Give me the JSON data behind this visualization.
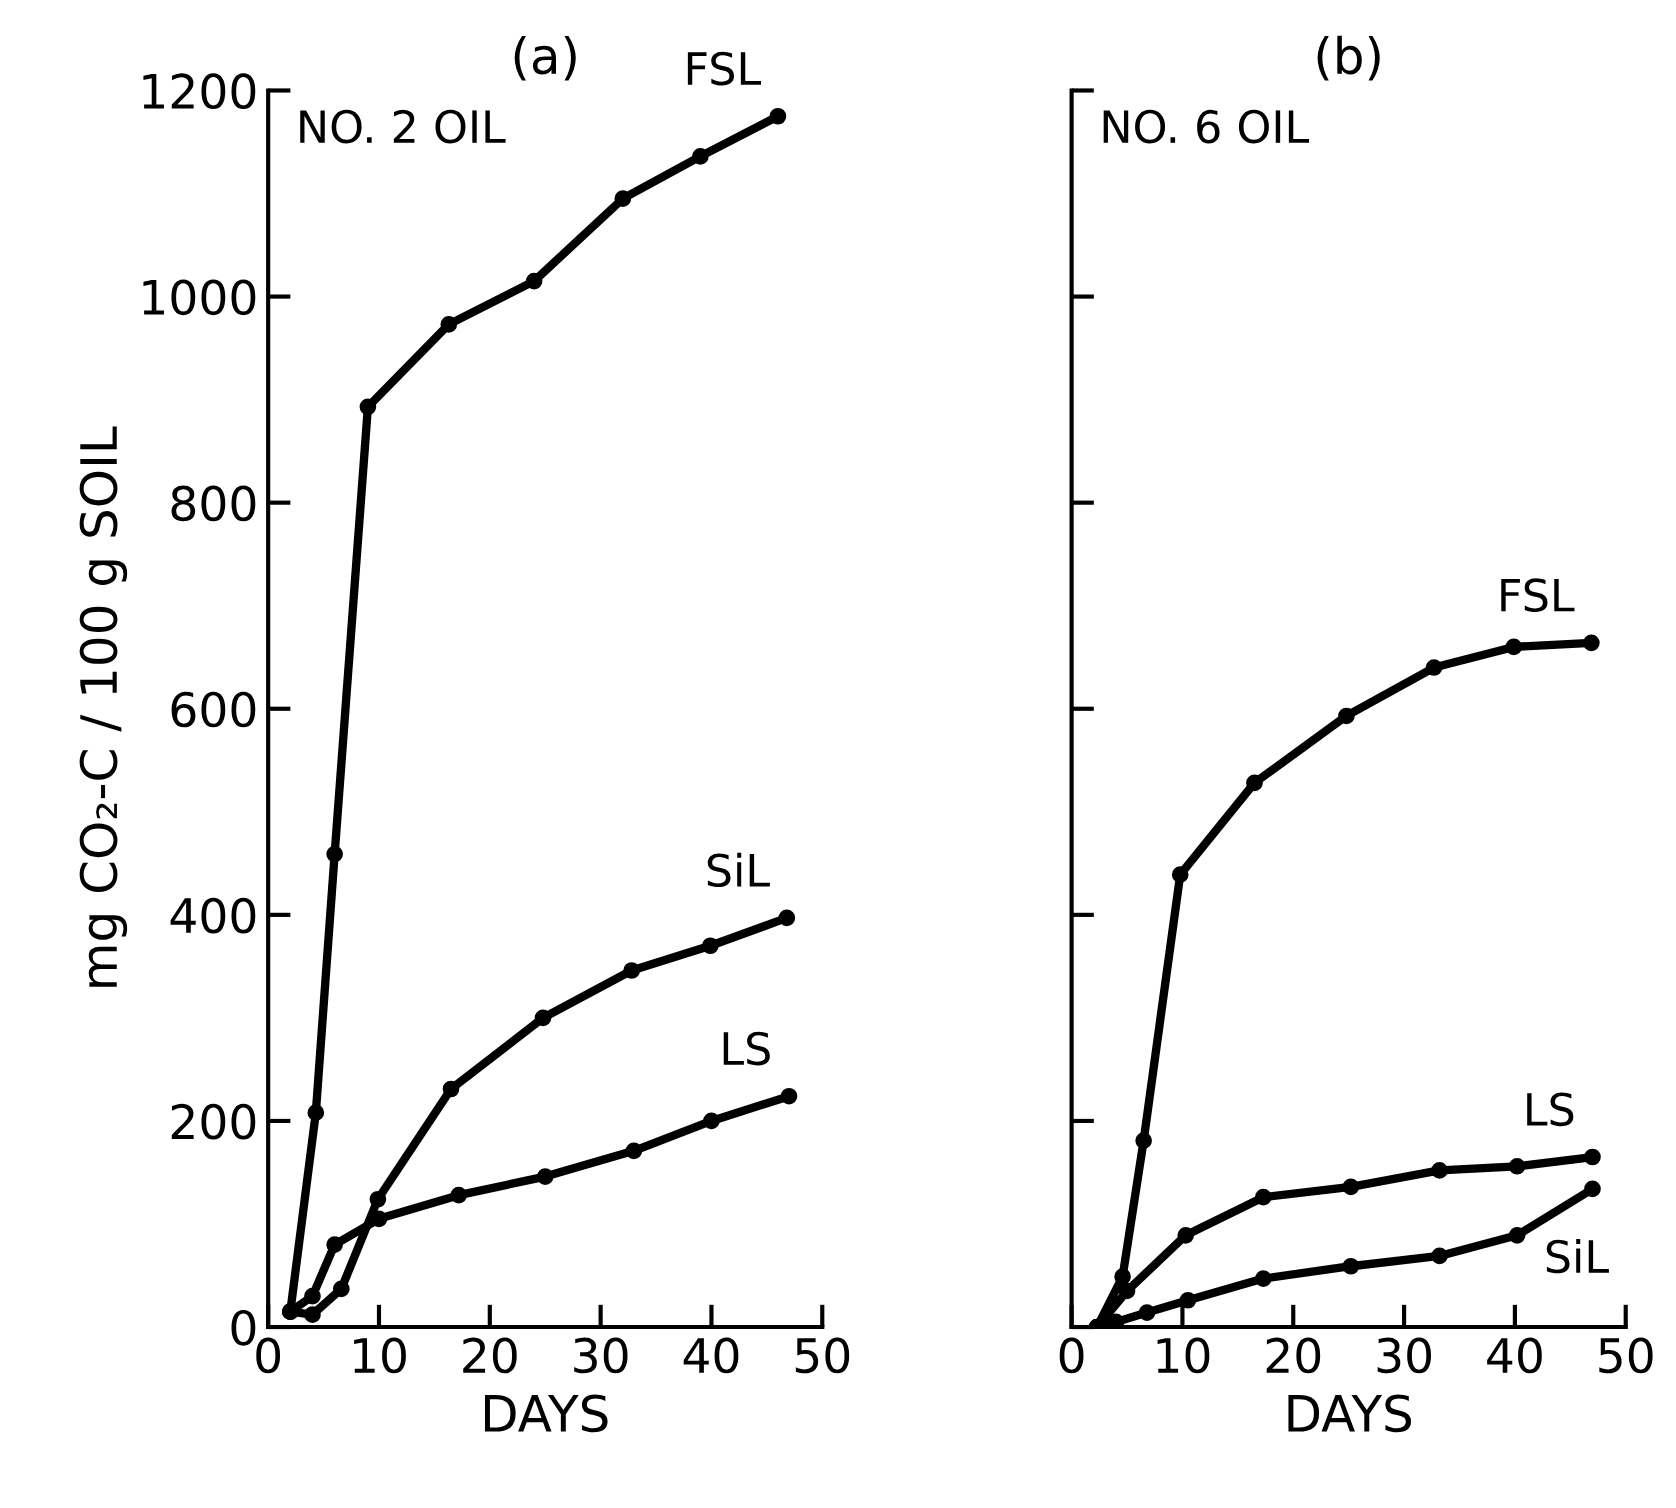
{
  "chart_data": [
    {
      "type": "line",
      "title": "(a)",
      "xlabel": "DAYS",
      "ylabel": "mg CO₂-C / 100 g SOIL",
      "xlim": [
        0,
        50
      ],
      "ylim": [
        0,
        1200
      ],
      "xticks": [
        0,
        10,
        20,
        30,
        40,
        50
      ],
      "yticks": [
        0,
        200,
        400,
        600,
        800,
        1000,
        1200
      ],
      "marker": "circle",
      "line_style": "solid",
      "annotations": [
        "NO. 2 OIL"
      ],
      "series": [
        {
          "name": "FSL",
          "color": "#000000",
          "x": [
            2,
            4.3,
            6,
            9,
            16.3,
            24,
            32,
            39,
            46
          ],
          "values": [
            15,
            208,
            459,
            893,
            973,
            1015,
            1095,
            1136,
            1175
          ]
        },
        {
          "name": "SiL",
          "color": "#000000",
          "x": [
            2,
            4,
            6.6,
            9.9,
            16.5,
            24.8,
            32.8,
            39.9,
            46.8
          ],
          "values": [
            15,
            12,
            37,
            124,
            231,
            300,
            346,
            370,
            397
          ]
        },
        {
          "name": "LS",
          "color": "#000000",
          "x": [
            2,
            4,
            6,
            10,
            17.2,
            25,
            33,
            40,
            47
          ],
          "values": [
            15,
            30,
            80,
            105,
            128,
            146,
            171,
            200,
            224
          ]
        }
      ]
    },
    {
      "type": "line",
      "title": "(b)",
      "xlabel": "DAYS",
      "xlim": [
        0,
        50
      ],
      "ylim": [
        0,
        1200
      ],
      "xticks": [
        0,
        10,
        20,
        30,
        40,
        50
      ],
      "yticks": [
        0,
        200,
        400,
        600,
        800,
        1000,
        1200
      ],
      "tick_labels": "x",
      "marker": "circle",
      "line_style": "solid",
      "annotations": [
        "NO. 6 OIL"
      ],
      "series": [
        {
          "name": "FSL",
          "color": "#000000",
          "x": [
            2.3,
            4.6,
            6.5,
            9.8,
            16.5,
            24.8,
            32.7,
            39.9,
            46.9
          ],
          "values": [
            0,
            49,
            181,
            439,
            528,
            593,
            640,
            660,
            664
          ]
        },
        {
          "name": "LS",
          "color": "#000000",
          "x": [
            2.3,
            5,
            10.3,
            17.3,
            25.2,
            33.2,
            40.2,
            47
          ],
          "values": [
            0,
            35,
            89,
            126,
            136,
            152,
            156,
            165
          ]
        },
        {
          "name": "SiL",
          "color": "#000000",
          "x": [
            2.3,
            4,
            6.8,
            10.5,
            17.3,
            25.2,
            33.2,
            40.2,
            47
          ],
          "values": [
            0,
            5,
            14,
            26,
            47,
            59,
            69,
            89,
            134
          ]
        }
      ]
    }
  ]
}
